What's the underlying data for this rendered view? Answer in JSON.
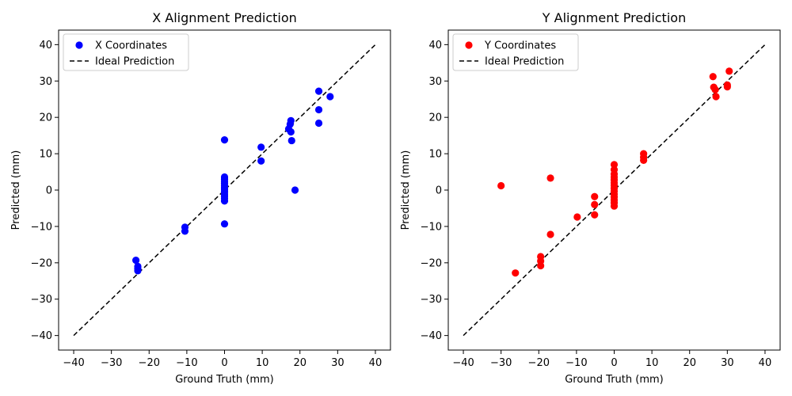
{
  "chart_data": [
    {
      "type": "scatter",
      "title": "X Alignment Prediction",
      "xlabel": "Ground Truth (mm)",
      "ylabel": "Predicted (mm)",
      "xlim": [
        -44,
        44
      ],
      "ylim": [
        -44,
        44
      ],
      "xticks": [
        -40,
        -30,
        -20,
        -10,
        0,
        10,
        20,
        30,
        40
      ],
      "yticks": [
        -40,
        -30,
        -20,
        -10,
        0,
        10,
        20,
        30,
        40
      ],
      "xtick_labels": [
        "−40",
        "−30",
        "−20",
        "−10",
        "0",
        "10",
        "20",
        "30",
        "40"
      ],
      "ytick_labels": [
        "−40",
        "−30",
        "−20",
        "−10",
        "0",
        "10",
        "20",
        "30",
        "40"
      ],
      "grid": false,
      "legend_position": "upper-left",
      "series": [
        {
          "name": "X Coordinates",
          "kind": "scatter",
          "color": "#0000ff",
          "points": [
            [
              -23.5,
              -19.3
            ],
            [
              -23.0,
              -21.0
            ],
            [
              -23.0,
              -21.6
            ],
            [
              -23.0,
              -22.2
            ],
            [
              -10.5,
              -10.2
            ],
            [
              -10.5,
              -11.3
            ],
            [
              0,
              13.8
            ],
            [
              0,
              3.6
            ],
            [
              0,
              3.0
            ],
            [
              0,
              2.4
            ],
            [
              0,
              1.8
            ],
            [
              0,
              1.2
            ],
            [
              0,
              0.6
            ],
            [
              0,
              0.1
            ],
            [
              0,
              -0.5
            ],
            [
              0,
              -1.1
            ],
            [
              0,
              -1.7
            ],
            [
              0,
              -2.3
            ],
            [
              0,
              -3.0
            ],
            [
              0,
              -9.3
            ],
            [
              9.7,
              11.8
            ],
            [
              9.7,
              8.0
            ],
            [
              17.0,
              16.8
            ],
            [
              17.4,
              18.1
            ],
            [
              17.6,
              16.0
            ],
            [
              17.6,
              19.1
            ],
            [
              17.8,
              13.6
            ],
            [
              18.7,
              0.0
            ],
            [
              25.0,
              27.2
            ],
            [
              25.0,
              22.1
            ],
            [
              25.0,
              18.4
            ],
            [
              28.0,
              25.7
            ]
          ]
        },
        {
          "name": "Ideal Prediction",
          "kind": "line",
          "dash": "dashed",
          "color": "#000000",
          "points": [
            [
              -40,
              -40
            ],
            [
              40,
              40
            ]
          ]
        }
      ]
    },
    {
      "type": "scatter",
      "title": "Y Alignment Prediction",
      "xlabel": "Ground Truth (mm)",
      "ylabel": "Predicted (mm)",
      "xlim": [
        -44,
        44
      ],
      "ylim": [
        -44,
        44
      ],
      "xticks": [
        -40,
        -30,
        -20,
        -10,
        0,
        10,
        20,
        30,
        40
      ],
      "yticks": [
        -40,
        -30,
        -20,
        -10,
        0,
        10,
        20,
        30,
        40
      ],
      "xtick_labels": [
        "−40",
        "−30",
        "−20",
        "−10",
        "0",
        "10",
        "20",
        "30",
        "40"
      ],
      "ytick_labels": [
        "−40",
        "−30",
        "−20",
        "−10",
        "0",
        "10",
        "20",
        "30",
        "40"
      ],
      "grid": false,
      "legend_position": "upper-left",
      "series": [
        {
          "name": "Y Coordinates",
          "kind": "scatter",
          "color": "#ff0000",
          "points": [
            [
              -30.0,
              1.2
            ],
            [
              -26.2,
              -22.8
            ],
            [
              -19.5,
              -18.3
            ],
            [
              -19.5,
              -19.5
            ],
            [
              -19.5,
              -20.8
            ],
            [
              -16.9,
              3.3
            ],
            [
              -16.9,
              -12.2
            ],
            [
              -9.8,
              -7.4
            ],
            [
              -5.2,
              -1.8
            ],
            [
              -5.2,
              -4.0
            ],
            [
              -5.2,
              -6.8
            ],
            [
              0,
              7.0
            ],
            [
              0,
              5.6
            ],
            [
              0,
              4.4
            ],
            [
              0,
              3.6
            ],
            [
              0,
              2.8
            ],
            [
              0,
              2.0
            ],
            [
              0,
              1.3
            ],
            [
              0,
              0.5
            ],
            [
              0,
              -0.3
            ],
            [
              0,
              -1.1
            ],
            [
              0,
              -1.9
            ],
            [
              0,
              -2.7
            ],
            [
              0,
              -3.5
            ],
            [
              0,
              -4.4
            ],
            [
              7.8,
              10.0
            ],
            [
              7.8,
              9.0
            ],
            [
              7.8,
              8.2
            ],
            [
              26.2,
              31.2
            ],
            [
              26.4,
              28.3
            ],
            [
              26.8,
              27.6
            ],
            [
              27.0,
              25.7
            ],
            [
              30.0,
              28.9
            ],
            [
              30.0,
              28.4
            ],
            [
              30.5,
              32.7
            ]
          ]
        },
        {
          "name": "Ideal Prediction",
          "kind": "line",
          "dash": "dashed",
          "color": "#000000",
          "points": [
            [
              -40,
              -40
            ],
            [
              40,
              40
            ]
          ]
        }
      ]
    }
  ]
}
